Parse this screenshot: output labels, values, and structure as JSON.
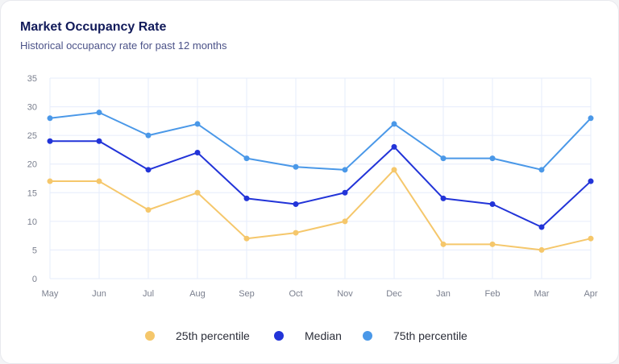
{
  "header": {
    "title": "Market Occupancy Rate",
    "subtitle": "Historical occupancy rate for past 12 months"
  },
  "chart_data": {
    "type": "line",
    "title": "Market Occupancy Rate",
    "subtitle": "Historical occupancy rate for past 12 months",
    "xlabel": "",
    "ylabel": "",
    "categories": [
      "May",
      "Jun",
      "Jul",
      "Aug",
      "Sep",
      "Oct",
      "Nov",
      "Dec",
      "Jan",
      "Feb",
      "Mar",
      "Apr"
    ],
    "ylim": [
      0,
      35
    ],
    "yticks": [
      0,
      5,
      10,
      15,
      20,
      25,
      30,
      35
    ],
    "grid": true,
    "legend_position": "bottom-center",
    "series": [
      {
        "name": "25th percentile",
        "color": "#f5c76b",
        "values": [
          17,
          17,
          12,
          15,
          7,
          8,
          10,
          19,
          6,
          6,
          5,
          7
        ]
      },
      {
        "name": "Median",
        "color": "#2234d8",
        "values": [
          24,
          24,
          19,
          22,
          14,
          13,
          15,
          23,
          14,
          13,
          9,
          17
        ]
      },
      {
        "name": "75th percentile",
        "color": "#4a98e8",
        "values": [
          28,
          29,
          25,
          27,
          21,
          19.5,
          19,
          27,
          21,
          21,
          19,
          28
        ]
      }
    ]
  },
  "colors": {
    "title": "#111a5a",
    "subtitle": "#4b5288",
    "grid": "#e6ecfb"
  }
}
